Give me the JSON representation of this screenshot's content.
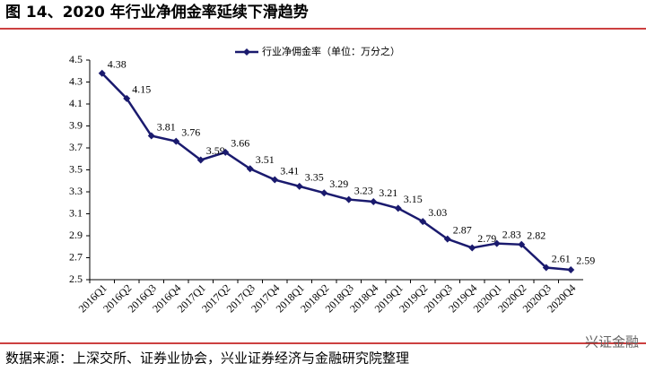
{
  "chart_data": {
    "type": "line",
    "title": "图 14、2020 年行业净佣金率延续下滑趋势",
    "source": "数据来源：上深交所、证券业协会，兴业证券经济与金融研究院整理",
    "watermark": "兴证金融",
    "categories": [
      "2016Q1",
      "2016Q2",
      "2016Q3",
      "2016Q4",
      "2017Q1",
      "2017Q2",
      "2017Q3",
      "2017Q4",
      "2018Q1",
      "2018Q2",
      "2018Q3",
      "2018Q4",
      "2019Q1",
      "2019Q2",
      "2019Q3",
      "2019Q4",
      "2020Q1",
      "2020Q2",
      "2020Q3",
      "2020Q4"
    ],
    "series": [
      {
        "name": "行业净佣金率（单位：万分之）",
        "color": "#1a1a6e",
        "values": [
          4.38,
          4.15,
          3.81,
          3.76,
          3.59,
          3.66,
          3.51,
          3.41,
          3.35,
          3.29,
          3.23,
          3.21,
          3.15,
          3.03,
          2.87,
          2.79,
          2.83,
          2.82,
          2.61,
          2.59
        ]
      }
    ],
    "ylim": [
      2.5,
      4.5
    ],
    "yticks": [
      2.5,
      2.7,
      2.9,
      3.1,
      3.3,
      3.5,
      3.7,
      3.9,
      4.1,
      4.3,
      4.5
    ],
    "grid": false,
    "legend": "top"
  }
}
